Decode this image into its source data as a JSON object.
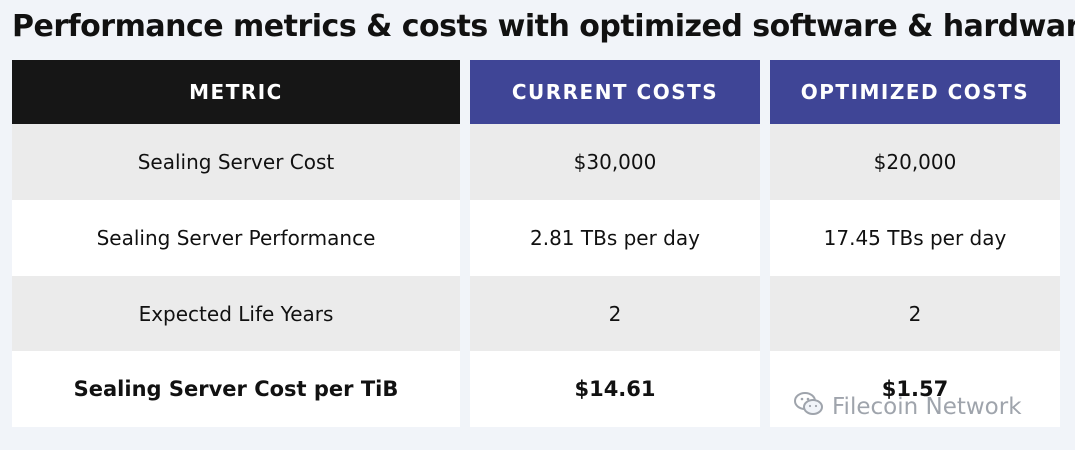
{
  "title": "Performance metrics & costs with optimized software & hardware",
  "table": {
    "headers": [
      "METRIC",
      "CURRENT COSTS",
      "OPTIMIZED COSTS"
    ],
    "rows": [
      [
        "Sealing Server Cost",
        "$30,000",
        "$20,000"
      ],
      [
        "Sealing Server Performance",
        "2.81 TBs per day",
        "17.45 TBs per day"
      ],
      [
        "Expected Life Years",
        "2",
        "2"
      ],
      [
        "Sealing Server Cost per TiB",
        "$14.61",
        "$1.57"
      ]
    ]
  },
  "watermark": {
    "text": "Filecoin Network",
    "icon": "wechat-icon"
  },
  "colors": {
    "header_dark": "#161616",
    "header_blue": "#3f4596",
    "row_grey": "#ebebeb",
    "row_white": "#ffffff",
    "background": "#f1f4f9"
  }
}
